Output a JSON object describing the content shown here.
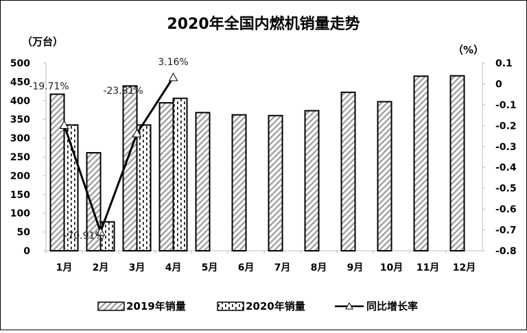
{
  "chart_data": {
    "type": "bar",
    "title": "2020年全国内燃机销量走势",
    "ylabel_left": "（万台）",
    "ylabel_right": "（%）",
    "categories": [
      "1月",
      "2月",
      "3月",
      "4月",
      "5月",
      "6月",
      "7月",
      "8月",
      "9月",
      "10月",
      "11月",
      "12月"
    ],
    "series": [
      {
        "name": "2019年销量",
        "type": "bar",
        "axis": "left",
        "pattern": "diagonal-hatch",
        "values": [
          417,
          261,
          439,
          394,
          368,
          362,
          360,
          373,
          422,
          397,
          465,
          466
        ]
      },
      {
        "name": "2020年销量",
        "type": "bar",
        "axis": "left",
        "pattern": "dotted-vertical",
        "values": [
          335,
          77,
          335,
          406,
          null,
          null,
          null,
          null,
          null,
          null,
          null,
          null
        ]
      },
      {
        "name": "同比增长率",
        "type": "line",
        "axis": "right",
        "marker": "triangle",
        "values": [
          -0.1971,
          -0.7091,
          -0.2381,
          0.0316,
          null,
          null,
          null,
          null,
          null,
          null,
          null,
          null
        ],
        "data_labels": [
          "-19.71%",
          "-70.91%",
          "-23.81%",
          "3.16%"
        ]
      }
    ],
    "ylim_left": [
      0,
      500
    ],
    "yticks_left": [
      "0",
      "50",
      "100",
      "150",
      "200",
      "250",
      "300",
      "350",
      "400",
      "450",
      "500"
    ],
    "ylim_right": [
      -0.8,
      0.1
    ],
    "yticks_right": [
      "-0.8",
      "-0.7",
      "-0.6",
      "-0.5",
      "-0.4",
      "-0.3",
      "-0.2",
      "-0.1",
      "0",
      "0.1"
    ],
    "grid": false,
    "legend": "bottom"
  }
}
